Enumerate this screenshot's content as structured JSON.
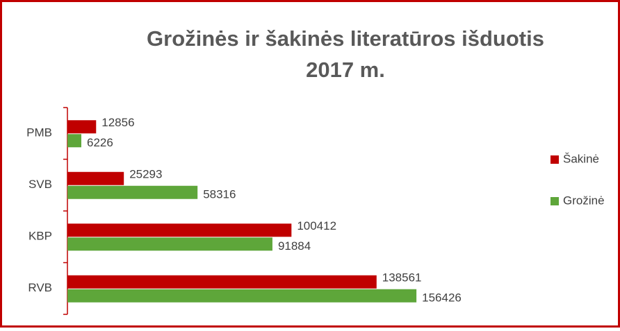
{
  "chart_data": {
    "type": "bar",
    "orientation": "horizontal",
    "title": [
      "Grožinės ir šakinės literatūros išduotis",
      "2017 m."
    ],
    "categories": [
      "PMB",
      "SVB",
      "KBP",
      "RVB"
    ],
    "series": [
      {
        "name": "Šakinė",
        "color": "#c00000",
        "values": [
          12856,
          25293,
          100412,
          138561
        ]
      },
      {
        "name": "Grožinė",
        "color": "#5ea63a",
        "values": [
          6226,
          58316,
          91884,
          156426
        ]
      }
    ],
    "xlim": [
      0,
      200000
    ],
    "legend": "right",
    "grid": false
  }
}
